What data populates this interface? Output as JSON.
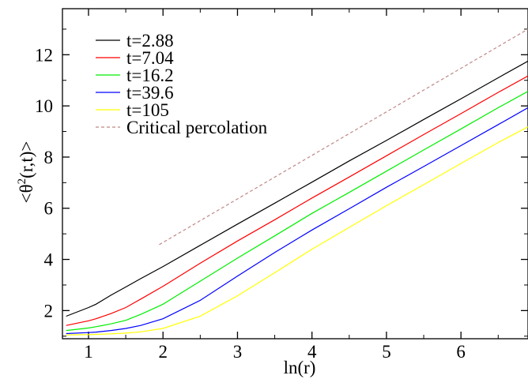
{
  "chart_data": {
    "type": "line",
    "title": "",
    "xlabel": "ln(r)",
    "ylabel_parts": {
      "prefix": "<θ",
      "sup": "2",
      "suffix": "(r,t)>"
    },
    "xlim": [
      0.65,
      6.9
    ],
    "ylim": [
      0.9,
      13.8
    ],
    "xticks": [
      1,
      2,
      3,
      4,
      5,
      6
    ],
    "yticks": [
      2,
      4,
      6,
      8,
      10,
      12
    ],
    "grid": false,
    "legend_position": "top-left",
    "series": [
      {
        "name": "t=2.88",
        "color": "#000000",
        "dash": "",
        "x": [
          0.7,
          1.0,
          1.1,
          1.3,
          1.5,
          1.7,
          2.0,
          2.5,
          3.0,
          3.5,
          4.0,
          4.5,
          5.0,
          5.5,
          6.0,
          6.5,
          6.9
        ],
        "y": [
          1.78,
          2.12,
          2.25,
          2.6,
          2.92,
          3.25,
          3.72,
          4.55,
          5.38,
          6.2,
          7.02,
          7.85,
          8.65,
          9.47,
          10.28,
          11.1,
          11.75
        ]
      },
      {
        "name": "t=7.04",
        "color": "#ff0000",
        "dash": "",
        "x": [
          0.7,
          1.0,
          1.1,
          1.3,
          1.5,
          1.7,
          2.0,
          2.5,
          3.0,
          3.5,
          4.0,
          4.5,
          5.0,
          5.5,
          6.0,
          6.5,
          6.9
        ],
        "y": [
          1.42,
          1.6,
          1.68,
          1.88,
          2.12,
          2.45,
          2.95,
          3.85,
          4.72,
          5.55,
          6.4,
          7.22,
          8.05,
          8.88,
          9.7,
          10.53,
          11.17
        ]
      },
      {
        "name": "t=16.2",
        "color": "#00ee00",
        "dash": "",
        "x": [
          0.7,
          1.0,
          1.1,
          1.3,
          1.5,
          1.7,
          2.0,
          2.5,
          3.0,
          3.5,
          4.0,
          4.5,
          5.0,
          5.5,
          6.0,
          6.5,
          6.9
        ],
        "y": [
          1.22,
          1.32,
          1.37,
          1.48,
          1.62,
          1.85,
          2.25,
          3.15,
          4.05,
          4.92,
          5.8,
          6.62,
          7.45,
          8.28,
          9.1,
          9.93,
          10.57
        ]
      },
      {
        "name": "t=39.6",
        "color": "#0000ff",
        "dash": "",
        "x": [
          0.7,
          1.0,
          1.1,
          1.3,
          1.5,
          1.7,
          2.0,
          2.5,
          3.0,
          3.5,
          4.0,
          4.5,
          5.0,
          5.5,
          6.0,
          6.5,
          6.9
        ],
        "y": [
          1.1,
          1.14,
          1.16,
          1.22,
          1.3,
          1.42,
          1.68,
          2.4,
          3.35,
          4.27,
          5.15,
          5.98,
          6.82,
          7.63,
          8.45,
          9.27,
          9.93
        ]
      },
      {
        "name": "t=105",
        "color": "#ffff00",
        "dash": "",
        "x": [
          0.7,
          1.0,
          1.1,
          1.3,
          1.5,
          1.7,
          2.0,
          2.5,
          3.0,
          3.5,
          4.0,
          4.5,
          5.0,
          5.5,
          6.0,
          6.5,
          6.9
        ],
        "y": [
          1.05,
          1.06,
          1.07,
          1.09,
          1.12,
          1.17,
          1.3,
          1.78,
          2.58,
          3.48,
          4.4,
          5.25,
          6.1,
          6.92,
          7.75,
          8.57,
          9.18
        ]
      },
      {
        "name": "Critical percolation",
        "color": "#c08888",
        "dash": "4,3",
        "x": [
          1.95,
          6.9
        ],
        "y": [
          4.58,
          13.0
        ]
      }
    ]
  }
}
